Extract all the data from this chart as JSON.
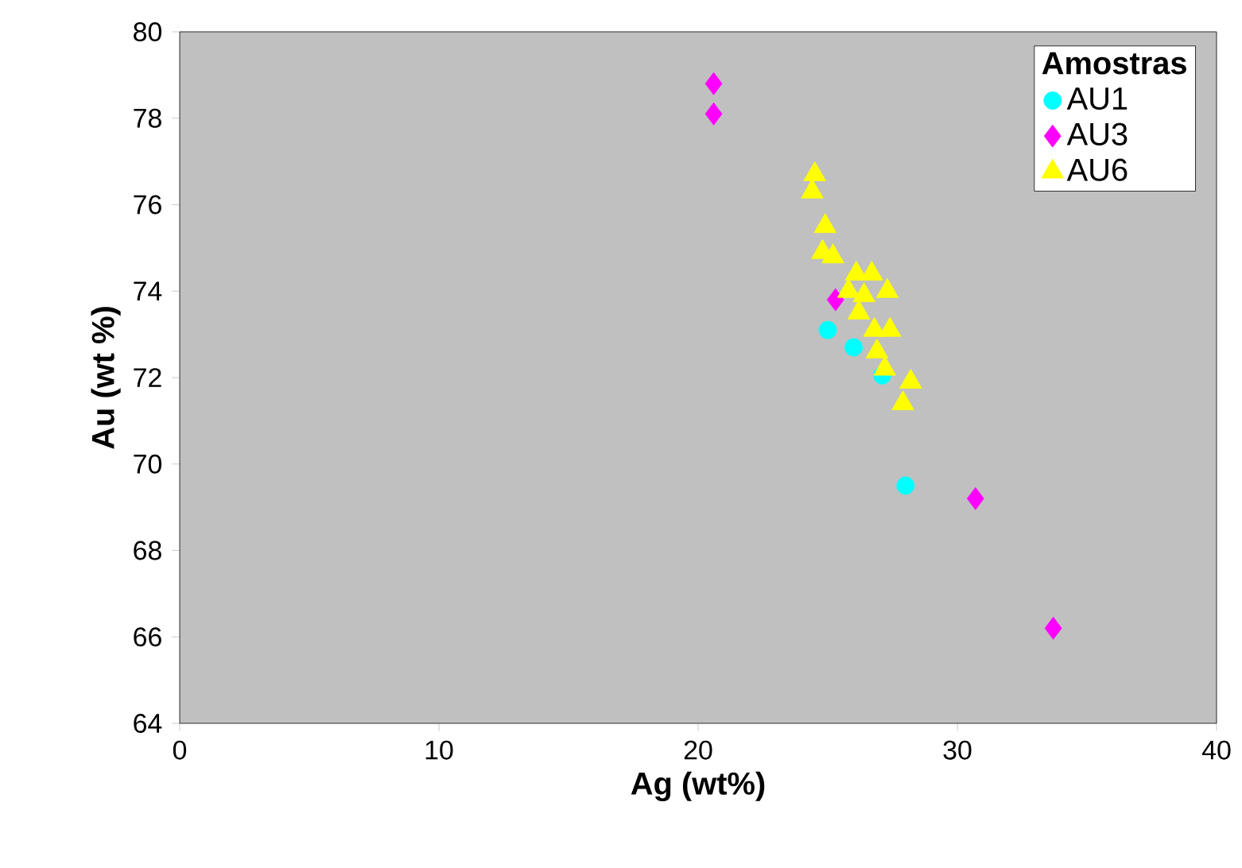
{
  "chart_data": {
    "type": "scatter",
    "xlabel": "Ag (wt%)",
    "ylabel": "Au (wt %)",
    "legend_title": "Amostras",
    "legend": "top right",
    "grid": false,
    "xlim": [
      0,
      40
    ],
    "xticks": [
      0,
      10,
      20,
      30,
      40
    ],
    "ylim": [
      64,
      80
    ],
    "yticks": [
      64,
      66,
      68,
      70,
      72,
      74,
      76,
      78,
      80
    ],
    "series": [
      {
        "name": "AU1",
        "color": "#00ffff",
        "marker": "circle",
        "x": [
          25.0,
          26.0,
          27.1,
          28.0
        ],
        "values": [
          73.1,
          72.7,
          72.05,
          69.5
        ]
      },
      {
        "name": "AU3",
        "color": "#ff00ff",
        "marker": "diamond",
        "x": [
          20.6,
          20.6,
          30.7,
          33.7,
          25.3
        ],
        "values": [
          78.8,
          78.1,
          69.2,
          66.2,
          73.8
        ]
      },
      {
        "name": "AU6",
        "color": "#ffff00",
        "marker": "triangle",
        "x": [
          24.5,
          24.4,
          24.9,
          24.8,
          25.2,
          26.1,
          26.7,
          27.3,
          25.8,
          26.4,
          26.2,
          27.4,
          26.8,
          26.9,
          27.2,
          28.2,
          27.9
        ],
        "values": [
          76.7,
          76.3,
          75.5,
          74.9,
          74.8,
          74.4,
          74.4,
          74.0,
          74.0,
          73.9,
          73.5,
          73.1,
          73.1,
          72.6,
          72.2,
          71.9,
          71.4
        ]
      }
    ]
  }
}
